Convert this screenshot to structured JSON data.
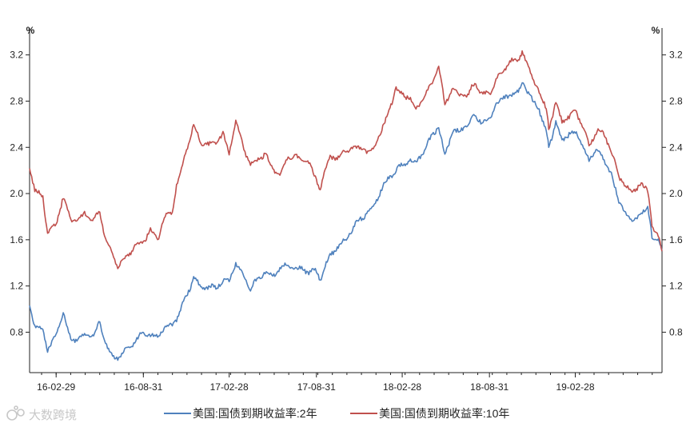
{
  "chart_data": {
    "type": "line",
    "title": "",
    "xlabel": "",
    "ylabel": "",
    "y_unit_left": "%",
    "y_unit_right": "%",
    "ylim": [
      0.45,
      3.35
    ],
    "yticks": [
      0.8,
      1.2,
      1.6,
      2.0,
      2.4,
      2.8,
      3.2
    ],
    "ytick_labels": [
      "0.8",
      "1.2",
      "1.6",
      "2.0",
      "2.4",
      "2.8",
      "3.2"
    ],
    "xlim": [
      "2016-01-04",
      "2019-08-30"
    ],
    "xticks": [
      "2016-02-29",
      "2016-08-31",
      "2017-02-28",
      "2017-08-31",
      "2018-02-28",
      "2018-08-31",
      "2019-02-28"
    ],
    "xtick_labels": [
      "16-02-29",
      "16-08-31",
      "17-02-28",
      "17-08-31",
      "18-02-28",
      "18-08-31",
      "19-02-28"
    ],
    "grid": false,
    "legend": "bottom",
    "series": [
      {
        "name": "美国:国债到期收益率:2年",
        "color": "#4f81bd",
        "points": [
          [
            "2016-01-04",
            1.02
          ],
          [
            "2016-01-15",
            0.86
          ],
          [
            "2016-02-01",
            0.81
          ],
          [
            "2016-02-11",
            0.65
          ],
          [
            "2016-02-29",
            0.78
          ],
          [
            "2016-03-15",
            0.97
          ],
          [
            "2016-03-31",
            0.73
          ],
          [
            "2016-04-15",
            0.74
          ],
          [
            "2016-04-29",
            0.78
          ],
          [
            "2016-05-16",
            0.77
          ],
          [
            "2016-05-31",
            0.88
          ],
          [
            "2016-06-10",
            0.74
          ],
          [
            "2016-06-27",
            0.57
          ],
          [
            "2016-07-08",
            0.58
          ],
          [
            "2016-07-29",
            0.66
          ],
          [
            "2016-08-15",
            0.73
          ],
          [
            "2016-08-31",
            0.8
          ],
          [
            "2016-09-15",
            0.77
          ],
          [
            "2016-09-30",
            0.76
          ],
          [
            "2016-10-14",
            0.84
          ],
          [
            "2016-10-31",
            0.86
          ],
          [
            "2016-11-09",
            0.92
          ],
          [
            "2016-11-30",
            1.11
          ],
          [
            "2016-12-15",
            1.27
          ],
          [
            "2016-12-30",
            1.19
          ],
          [
            "2017-01-16",
            1.19
          ],
          [
            "2017-01-31",
            1.19
          ],
          [
            "2017-02-15",
            1.24
          ],
          [
            "2017-02-28",
            1.24
          ],
          [
            "2017-03-14",
            1.4
          ],
          [
            "2017-03-31",
            1.27
          ],
          [
            "2017-04-14",
            1.18
          ],
          [
            "2017-04-28",
            1.26
          ],
          [
            "2017-05-15",
            1.32
          ],
          [
            "2017-05-31",
            1.28
          ],
          [
            "2017-06-15",
            1.35
          ],
          [
            "2017-06-30",
            1.38
          ],
          [
            "2017-07-14",
            1.35
          ],
          [
            "2017-07-31",
            1.35
          ],
          [
            "2017-08-15",
            1.32
          ],
          [
            "2017-08-31",
            1.33
          ],
          [
            "2017-09-08",
            1.26
          ],
          [
            "2017-09-29",
            1.47
          ],
          [
            "2017-10-16",
            1.54
          ],
          [
            "2017-10-31",
            1.6
          ],
          [
            "2017-11-15",
            1.69
          ],
          [
            "2017-11-30",
            1.78
          ],
          [
            "2017-12-15",
            1.82
          ],
          [
            "2017-12-29",
            1.89
          ],
          [
            "2018-01-16",
            2.04
          ],
          [
            "2018-01-31",
            2.14
          ],
          [
            "2018-02-15",
            2.2
          ],
          [
            "2018-02-28",
            2.25
          ],
          [
            "2018-03-15",
            2.29
          ],
          [
            "2018-03-29",
            2.27
          ],
          [
            "2018-04-16",
            2.38
          ],
          [
            "2018-04-30",
            2.49
          ],
          [
            "2018-05-16",
            2.58
          ],
          [
            "2018-05-29",
            2.33
          ],
          [
            "2018-06-15",
            2.55
          ],
          [
            "2018-06-29",
            2.53
          ],
          [
            "2018-07-16",
            2.61
          ],
          [
            "2018-07-31",
            2.67
          ],
          [
            "2018-08-15",
            2.62
          ],
          [
            "2018-08-31",
            2.63
          ],
          [
            "2018-09-14",
            2.78
          ],
          [
            "2018-09-28",
            2.82
          ],
          [
            "2018-10-15",
            2.86
          ],
          [
            "2018-10-31",
            2.87
          ],
          [
            "2018-11-08",
            2.97
          ],
          [
            "2018-11-30",
            2.8
          ],
          [
            "2018-12-14",
            2.73
          ],
          [
            "2018-12-31",
            2.49
          ],
          [
            "2019-01-03",
            2.39
          ],
          [
            "2019-01-18",
            2.62
          ],
          [
            "2019-01-31",
            2.46
          ],
          [
            "2019-02-15",
            2.52
          ],
          [
            "2019-02-28",
            2.52
          ],
          [
            "2019-03-15",
            2.44
          ],
          [
            "2019-03-29",
            2.27
          ],
          [
            "2019-04-15",
            2.4
          ],
          [
            "2019-04-30",
            2.27
          ],
          [
            "2019-05-15",
            2.18
          ],
          [
            "2019-05-31",
            1.92
          ],
          [
            "2019-06-14",
            1.85
          ],
          [
            "2019-06-28",
            1.75
          ],
          [
            "2019-07-15",
            1.83
          ],
          [
            "2019-07-31",
            1.87
          ],
          [
            "2019-08-09",
            1.63
          ],
          [
            "2019-08-22",
            1.6
          ],
          [
            "2019-08-30",
            1.5
          ]
        ]
      },
      {
        "name": "美国:国债到期收益率:10年",
        "color": "#c0504d",
        "points": [
          [
            "2016-01-04",
            2.24
          ],
          [
            "2016-01-15",
            2.03
          ],
          [
            "2016-02-01",
            1.97
          ],
          [
            "2016-02-11",
            1.66
          ],
          [
            "2016-02-29",
            1.74
          ],
          [
            "2016-03-15",
            1.97
          ],
          [
            "2016-03-31",
            1.78
          ],
          [
            "2016-04-15",
            1.76
          ],
          [
            "2016-04-29",
            1.83
          ],
          [
            "2016-05-16",
            1.76
          ],
          [
            "2016-05-31",
            1.84
          ],
          [
            "2016-06-10",
            1.64
          ],
          [
            "2016-06-27",
            1.46
          ],
          [
            "2016-07-08",
            1.37
          ],
          [
            "2016-07-29",
            1.46
          ],
          [
            "2016-08-15",
            1.55
          ],
          [
            "2016-08-31",
            1.58
          ],
          [
            "2016-09-15",
            1.69
          ],
          [
            "2016-09-30",
            1.6
          ],
          [
            "2016-10-14",
            1.8
          ],
          [
            "2016-10-31",
            1.84
          ],
          [
            "2016-11-09",
            2.07
          ],
          [
            "2016-11-30",
            2.37
          ],
          [
            "2016-12-15",
            2.6
          ],
          [
            "2016-12-30",
            2.45
          ],
          [
            "2017-01-16",
            2.42
          ],
          [
            "2017-01-31",
            2.45
          ],
          [
            "2017-02-15",
            2.51
          ],
          [
            "2017-02-28",
            2.36
          ],
          [
            "2017-03-14",
            2.62
          ],
          [
            "2017-03-31",
            2.4
          ],
          [
            "2017-04-14",
            2.24
          ],
          [
            "2017-04-28",
            2.29
          ],
          [
            "2017-05-15",
            2.34
          ],
          [
            "2017-05-31",
            2.21
          ],
          [
            "2017-06-15",
            2.15
          ],
          [
            "2017-06-30",
            2.31
          ],
          [
            "2017-07-14",
            2.33
          ],
          [
            "2017-07-31",
            2.29
          ],
          [
            "2017-08-15",
            2.27
          ],
          [
            "2017-08-31",
            2.12
          ],
          [
            "2017-09-08",
            2.05
          ],
          [
            "2017-09-29",
            2.33
          ],
          [
            "2017-10-16",
            2.3
          ],
          [
            "2017-10-31",
            2.38
          ],
          [
            "2017-11-15",
            2.38
          ],
          [
            "2017-11-30",
            2.41
          ],
          [
            "2017-12-15",
            2.35
          ],
          [
            "2017-12-29",
            2.4
          ],
          [
            "2018-01-16",
            2.54
          ],
          [
            "2018-01-31",
            2.72
          ],
          [
            "2018-02-15",
            2.9
          ],
          [
            "2018-02-28",
            2.87
          ],
          [
            "2018-03-15",
            2.82
          ],
          [
            "2018-03-29",
            2.74
          ],
          [
            "2018-04-16",
            2.83
          ],
          [
            "2018-04-30",
            2.95
          ],
          [
            "2018-05-16",
            3.11
          ],
          [
            "2018-05-29",
            2.77
          ],
          [
            "2018-06-15",
            2.92
          ],
          [
            "2018-06-29",
            2.85
          ],
          [
            "2018-07-16",
            2.85
          ],
          [
            "2018-07-31",
            2.96
          ],
          [
            "2018-08-15",
            2.86
          ],
          [
            "2018-08-31",
            2.86
          ],
          [
            "2018-09-14",
            2.99
          ],
          [
            "2018-09-28",
            3.05
          ],
          [
            "2018-10-15",
            3.16
          ],
          [
            "2018-10-31",
            3.15
          ],
          [
            "2018-11-08",
            3.24
          ],
          [
            "2018-11-30",
            2.99
          ],
          [
            "2018-12-14",
            2.89
          ],
          [
            "2018-12-31",
            2.69
          ],
          [
            "2019-01-03",
            2.56
          ],
          [
            "2019-01-18",
            2.78
          ],
          [
            "2019-01-31",
            2.63
          ],
          [
            "2019-02-15",
            2.66
          ],
          [
            "2019-02-28",
            2.73
          ],
          [
            "2019-03-15",
            2.59
          ],
          [
            "2019-03-29",
            2.41
          ],
          [
            "2019-04-15",
            2.55
          ],
          [
            "2019-04-30",
            2.51
          ],
          [
            "2019-05-15",
            2.37
          ],
          [
            "2019-05-31",
            2.14
          ],
          [
            "2019-06-14",
            2.08
          ],
          [
            "2019-06-28",
            2.0
          ],
          [
            "2019-07-15",
            2.09
          ],
          [
            "2019-07-31",
            2.02
          ],
          [
            "2019-08-09",
            1.74
          ],
          [
            "2019-08-22",
            1.62
          ],
          [
            "2019-08-30",
            1.5
          ]
        ]
      }
    ]
  },
  "watermark": {
    "text": "大数跨境",
    "icon": "logo-icon"
  }
}
